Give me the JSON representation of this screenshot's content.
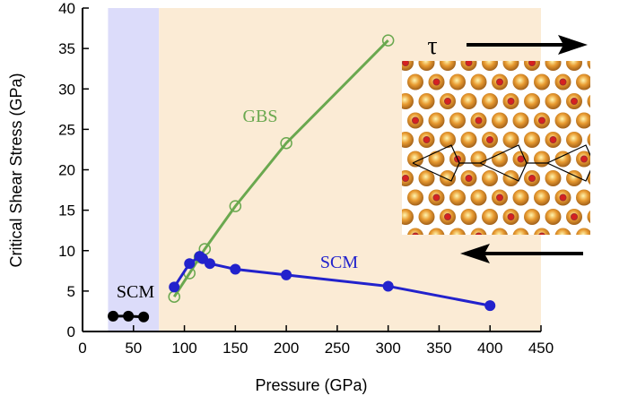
{
  "chart_data": {
    "type": "line",
    "xlabel": "Pressure (GPa)",
    "ylabel": "Critical Shear Stress (GPa)",
    "xlim": [
      0,
      450
    ],
    "ylim": [
      0,
      40
    ],
    "xticks": [
      0,
      50,
      100,
      150,
      200,
      250,
      300,
      350,
      400,
      450
    ],
    "yticks": [
      0,
      5,
      10,
      15,
      20,
      25,
      30,
      35,
      40
    ],
    "grid": false,
    "shaded_regions": [
      {
        "x": [
          25,
          75
        ],
        "color": "#dcdcfa"
      },
      {
        "x": [
          75,
          450
        ],
        "color": "#fbebd5"
      }
    ],
    "series": [
      {
        "name": "SCM",
        "color": "#000000",
        "marker": "filled-circle",
        "x": [
          30,
          45,
          60
        ],
        "y": [
          1.9,
          1.9,
          1.8
        ]
      },
      {
        "name": "SCM",
        "color": "#2222cc",
        "marker": "filled-circle",
        "x": [
          90,
          105,
          115,
          118,
          125,
          150,
          200,
          300,
          400
        ],
        "y": [
          5.5,
          8.4,
          9.3,
          9.0,
          8.4,
          7.7,
          7.0,
          5.6,
          3.2
        ]
      },
      {
        "name": "GBS",
        "color": "#6aa84f",
        "marker": "open-circle",
        "x": [
          90,
          105,
          115,
          120,
          150,
          200,
          300
        ],
        "y": [
          4.3,
          7.2,
          9.2,
          10.2,
          15.5,
          23.3,
          36.0
        ]
      }
    ],
    "annotations": {
      "gbs": "GBS",
      "scm_high": "SCM",
      "scm_low": "SCM",
      "tau": "τ"
    }
  }
}
